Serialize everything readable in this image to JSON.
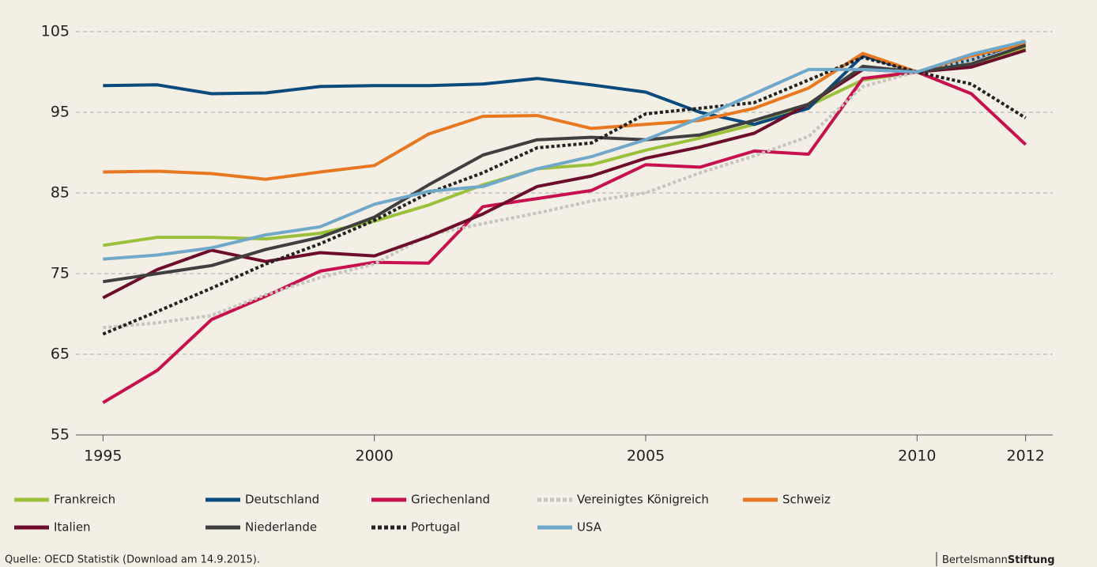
{
  "chart_data": {
    "type": "line",
    "x": [
      1995,
      1996,
      1997,
      1998,
      1999,
      2000,
      2001,
      2002,
      2003,
      2004,
      2005,
      2006,
      2007,
      2008,
      2009,
      2010,
      2011,
      2012
    ],
    "xlim": [
      1994.5,
      2012.5
    ],
    "xticks": [
      1995,
      2000,
      2005,
      2010,
      2012
    ],
    "ylim": [
      55,
      105
    ],
    "yticks": [
      55,
      65,
      75,
      85,
      95,
      105
    ],
    "grid": true,
    "series": [
      {
        "name": "Frankreich",
        "color": "#9bc13c",
        "style": "solid",
        "values": [
          78.5,
          79.5,
          79.5,
          79.3,
          80,
          81.5,
          83.5,
          86,
          88,
          88.5,
          90.3,
          91.8,
          93.5,
          95.8,
          99,
          100,
          101,
          103
        ]
      },
      {
        "name": "Deutschland",
        "color": "#0b4a7d",
        "style": "solid",
        "values": [
          98.3,
          98.4,
          97.3,
          97.4,
          98.2,
          98.3,
          98.3,
          98.5,
          99.2,
          98.4,
          97.5,
          95,
          93.5,
          95.5,
          102,
          100,
          101.5,
          103.8
        ]
      },
      {
        "name": "Griechenland",
        "color": "#c8104e",
        "style": "solid",
        "values": [
          59,
          63,
          69.3,
          72.2,
          75.3,
          76.4,
          76.3,
          83.3,
          84.3,
          85.3,
          88.5,
          88.2,
          90.2,
          89.8,
          99.2,
          100,
          97.3,
          91
        ]
      },
      {
        "name": "Vereinigtes Königreich",
        "color": "#c7c3bd",
        "style": "dotted",
        "values": [
          68.3,
          68.9,
          69.8,
          72.4,
          74.5,
          76.2,
          79.8,
          81.2,
          82.5,
          84,
          85,
          87.5,
          89.6,
          92,
          98.2,
          100,
          101.5,
          104
        ]
      },
      {
        "name": "Schweiz",
        "color": "#e8771f",
        "style": "solid",
        "values": [
          87.6,
          87.7,
          87.4,
          86.7,
          87.6,
          88.4,
          92.3,
          94.5,
          94.6,
          93,
          93.5,
          94,
          95.5,
          98,
          102.3,
          100,
          102,
          103.5
        ]
      },
      {
        "name": "Italien",
        "color": "#6d0d2b",
        "style": "solid",
        "values": [
          72,
          75.5,
          77.9,
          76.5,
          77.6,
          77.2,
          79.6,
          82.4,
          85.8,
          87.1,
          89.3,
          90.7,
          92.4,
          96,
          100.3,
          100,
          100.6,
          102.7
        ]
      },
      {
        "name": "Niederlande",
        "color": "#3f3f3f",
        "style": "solid",
        "values": [
          74,
          75,
          76,
          78,
          79.5,
          82,
          86,
          89.7,
          91.6,
          91.9,
          91.6,
          92.2,
          94,
          96,
          100.7,
          100,
          101,
          103.3
        ]
      },
      {
        "name": "Portugal",
        "color": "#222222",
        "style": "dotted",
        "values": [
          67.5,
          70.3,
          73.2,
          76.2,
          78.7,
          81.6,
          85,
          87.5,
          90.6,
          91.2,
          94.8,
          95.5,
          96.2,
          99,
          101.8,
          100,
          98.5,
          94.3
        ]
      },
      {
        "name": "USA",
        "color": "#6fa8c9",
        "style": "solid",
        "values": [
          76.8,
          77.3,
          78.2,
          79.8,
          80.8,
          83.6,
          85.2,
          85.8,
          88,
          89.5,
          91.6,
          94.3,
          97.3,
          100.3,
          100.3,
          100,
          102.2,
          103.8
        ]
      }
    ],
    "source": "Quelle: OECD Statistik (Download am 14.9.2015).",
    "brand_light": "Bertelsmann",
    "brand_bold": "Stiftung"
  }
}
